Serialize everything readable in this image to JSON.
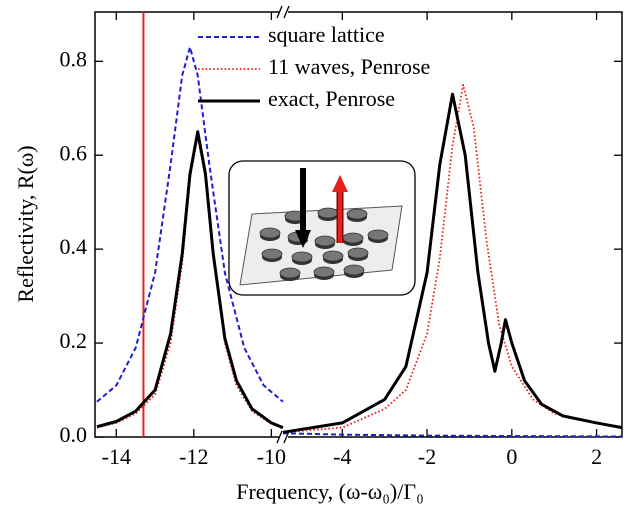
{
  "chart_data": {
    "type": "line",
    "x_label": "Frequency, (ω-ω₀)/Γ₀",
    "y_label": "Reflectivity, R(ω)",
    "ylim": [
      0,
      0.905
    ],
    "yticks": [
      {
        "value": 0,
        "label": "0.0"
      },
      0.2,
      0.4,
      0.6,
      0.8
    ],
    "x_segments": [
      {
        "xlim": [
          -14.55,
          -9.7
        ],
        "xticks": [
          -14,
          -12,
          -10
        ]
      },
      {
        "xlim": [
          -5.4,
          2.6
        ],
        "xticks": [
          -4,
          -2,
          0,
          2
        ]
      }
    ],
    "vline": {
      "x": -13.3,
      "color": "#e8201c"
    },
    "series": [
      {
        "name": "square lattice",
        "color": "#1f1fd0",
        "style": "dashed",
        "x": [
          -14.5,
          -14,
          -13.5,
          -13,
          -12.6,
          -12.3,
          -12.1,
          -11.9,
          -11.6,
          -11.2,
          -10.7,
          -10.2,
          -9.7,
          -5.4,
          -4,
          -2,
          0,
          2.6
        ],
        "values": [
          0.075,
          0.11,
          0.19,
          0.35,
          0.58,
          0.77,
          0.83,
          0.77,
          0.58,
          0.35,
          0.19,
          0.11,
          0.075,
          0.008,
          0.005,
          0.003,
          0.002,
          0.001
        ]
      },
      {
        "name": "11 waves, Penrose",
        "color": "#e8201c",
        "style": "dotted",
        "x": [
          -14.5,
          -14,
          -13.5,
          -13,
          -12.6,
          -12.3,
          -12.1,
          -11.9,
          -11.7,
          -11.5,
          -11.2,
          -10.9,
          -10.5,
          -10,
          -9.7,
          -5.4,
          -4,
          -3,
          -2.5,
          -2,
          -1.7,
          -1.4,
          -1.15,
          -0.9,
          -0.6,
          -0.3,
          0,
          0.5,
          1,
          2,
          2.6
        ],
        "values": [
          0.02,
          0.03,
          0.05,
          0.09,
          0.2,
          0.37,
          0.55,
          0.64,
          0.55,
          0.38,
          0.2,
          0.11,
          0.055,
          0.028,
          0.018,
          0.01,
          0.02,
          0.06,
          0.1,
          0.22,
          0.38,
          0.62,
          0.75,
          0.66,
          0.42,
          0.24,
          0.15,
          0.08,
          0.05,
          0.03,
          0.02
        ]
      },
      {
        "name": "exact, Penrose",
        "color": "#000000",
        "style": "solid",
        "x": [
          -14.5,
          -14,
          -13.5,
          -13,
          -12.6,
          -12.3,
          -12.1,
          -11.9,
          -11.7,
          -11.5,
          -11.2,
          -10.9,
          -10.5,
          -10,
          -9.7,
          -5.4,
          -4,
          -3,
          -2.5,
          -2,
          -1.7,
          -1.4,
          -1.1,
          -0.8,
          -0.55,
          -0.4,
          -0.25,
          -0.15,
          0,
          0.3,
          0.7,
          1.2,
          2,
          2.6
        ],
        "values": [
          0.022,
          0.033,
          0.055,
          0.1,
          0.22,
          0.39,
          0.56,
          0.65,
          0.56,
          0.39,
          0.21,
          0.12,
          0.06,
          0.03,
          0.02,
          0.01,
          0.03,
          0.08,
          0.15,
          0.35,
          0.58,
          0.73,
          0.6,
          0.35,
          0.2,
          0.14,
          0.2,
          0.25,
          0.2,
          0.12,
          0.07,
          0.045,
          0.03,
          0.02
        ]
      }
    ]
  }
}
